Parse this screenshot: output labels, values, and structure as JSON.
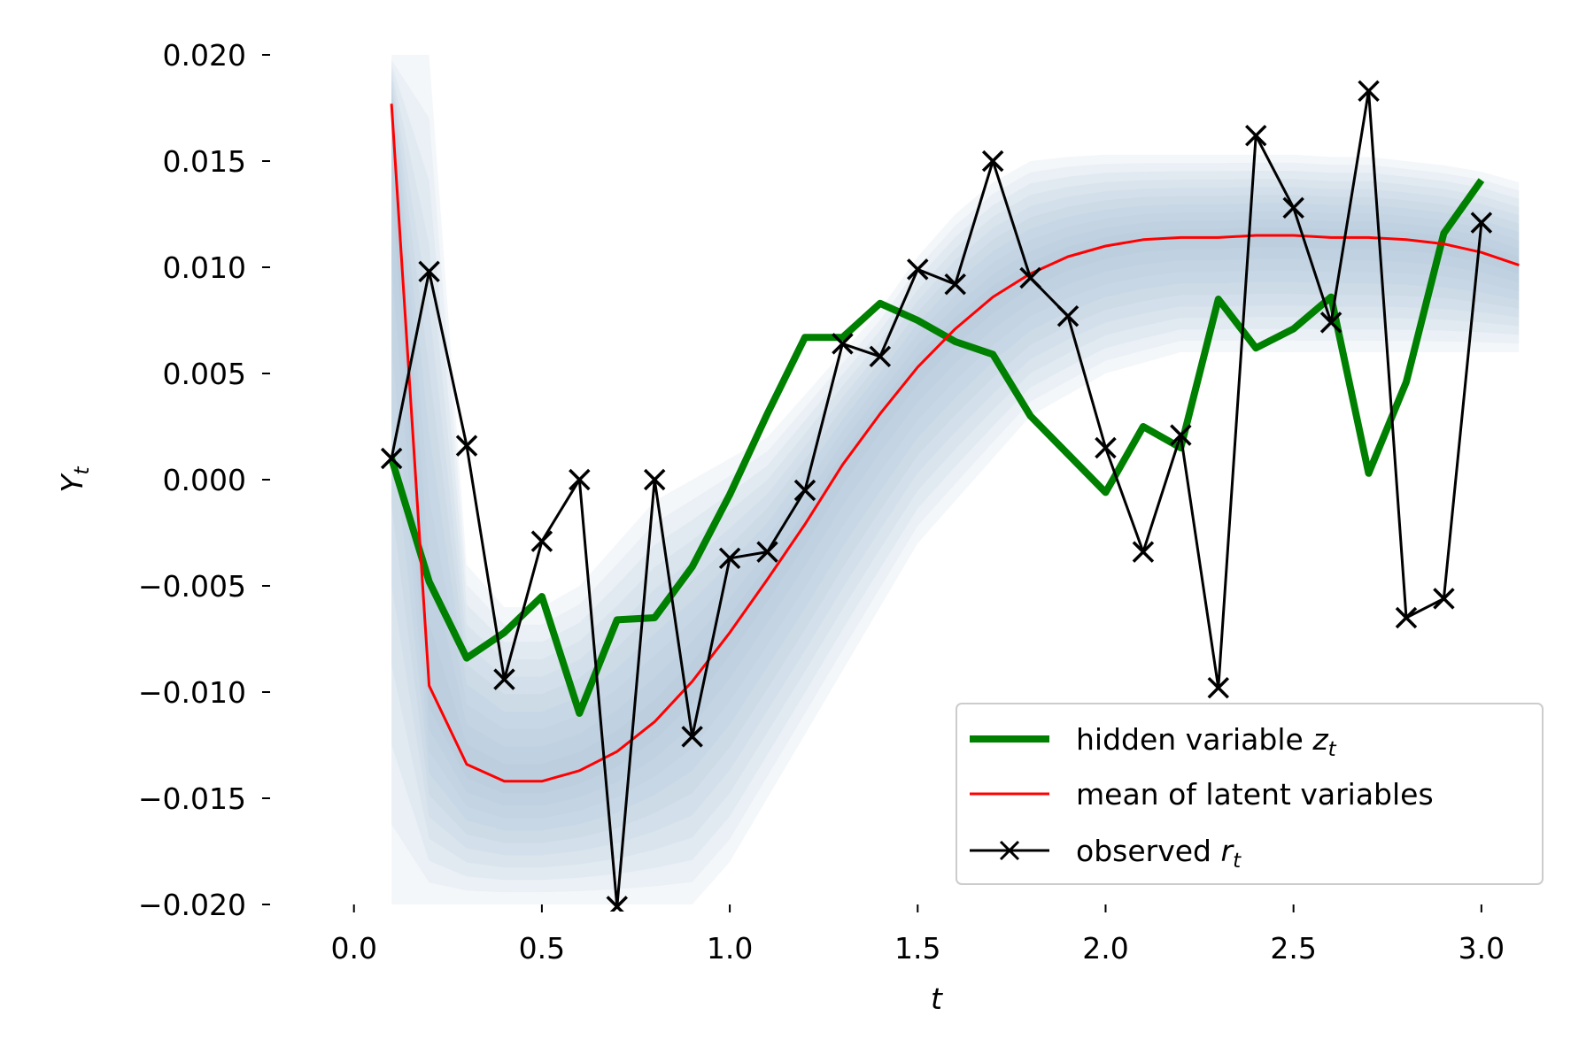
{
  "chart_data": {
    "type": "line",
    "xlabel": "t",
    "ylabel": "Y",
    "ylabel_sub": "t",
    "xlim": [
      -0.07,
      3.17
    ],
    "ylim": [
      -0.02,
      0.02
    ],
    "x_ticks": [
      0.0,
      0.5,
      1.0,
      1.5,
      2.0,
      2.5,
      3.0
    ],
    "x_tick_labels": [
      "0.0",
      "0.5",
      "1.0",
      "1.5",
      "2.0",
      "2.5",
      "3.0"
    ],
    "y_ticks": [
      0.02,
      0.015,
      0.01,
      0.005,
      0.0,
      -0.005,
      -0.01,
      -0.015,
      -0.02
    ],
    "y_tick_labels": [
      "0.020",
      "0.015",
      "0.010",
      "0.005",
      "0.000",
      "−0.005",
      "−0.010",
      "−0.015",
      "−0.020"
    ],
    "grid": false,
    "legend_position": "lower-right",
    "series": [
      {
        "name": "hidden variable",
        "name_sub": "t",
        "name_var": "z",
        "kind": "line",
        "color": "#008000",
        "x": [
          0.1,
          0.2,
          0.3,
          0.4,
          0.5,
          0.6,
          0.7,
          0.8,
          0.9,
          1.0,
          1.1,
          1.2,
          1.3,
          1.4,
          1.5,
          1.6,
          1.7,
          1.8,
          1.9,
          2.0,
          2.1,
          2.2,
          2.3,
          2.4,
          2.5,
          2.6,
          2.7,
          2.8,
          2.9,
          3.0
        ],
        "values": [
          0.001,
          -0.0048,
          -0.0084,
          -0.0072,
          -0.0055,
          -0.011,
          -0.0066,
          -0.0065,
          -0.0041,
          -0.0007,
          0.0031,
          0.0067,
          0.0067,
          0.0083,
          0.0075,
          0.0065,
          0.0059,
          0.003,
          0.0012,
          -0.0006,
          0.0025,
          0.0015,
          0.0085,
          0.0062,
          0.0071,
          0.0086,
          0.0003,
          0.0046,
          0.0116,
          0.0141
        ]
      },
      {
        "name": "mean of latent variables",
        "kind": "line",
        "color": "#ff0000",
        "x": [
          0.1,
          0.2,
          0.3,
          0.4,
          0.5,
          0.6,
          0.7,
          0.8,
          0.9,
          1.0,
          1.1,
          1.2,
          1.3,
          1.4,
          1.5,
          1.6,
          1.7,
          1.8,
          1.9,
          2.0,
          2.1,
          2.2,
          2.3,
          2.4,
          2.5,
          2.6,
          2.7,
          2.8,
          2.9,
          3.0,
          3.1
        ],
        "values": [
          0.0177,
          -0.0097,
          -0.0134,
          -0.0142,
          -0.0142,
          -0.0137,
          -0.0128,
          -0.0114,
          -0.0095,
          -0.0072,
          -0.0047,
          -0.0021,
          0.0007,
          0.0031,
          0.0053,
          0.0071,
          0.0086,
          0.0097,
          0.0105,
          0.011,
          0.0113,
          0.0114,
          0.0114,
          0.0115,
          0.0115,
          0.0114,
          0.0114,
          0.0113,
          0.0111,
          0.0107,
          0.0101
        ]
      },
      {
        "name": "observed",
        "name_sub": "t",
        "name_var": "r",
        "kind": "line-markers",
        "color": "#000000",
        "x": [
          0.1,
          0.2,
          0.3,
          0.4,
          0.5,
          0.6,
          0.7,
          0.8,
          0.9,
          1.0,
          1.1,
          1.2,
          1.3,
          1.4,
          1.5,
          1.6,
          1.7,
          1.8,
          1.9,
          2.0,
          2.1,
          2.2,
          2.3,
          2.4,
          2.5,
          2.6,
          2.7,
          2.8,
          2.9,
          3.0
        ],
        "values": [
          0.001,
          0.0098,
          0.0016,
          -0.0094,
          -0.0029,
          0.0,
          -0.0201,
          0.0,
          -0.0121,
          -0.0037,
          -0.0034,
          -0.0005,
          0.0064,
          0.0058,
          0.0099,
          0.0092,
          0.015,
          0.0095,
          0.0077,
          0.0015,
          -0.0034,
          0.0021,
          -0.0098,
          0.0162,
          0.0128,
          0.0074,
          0.0183,
          -0.0065,
          -0.0056,
          0.0121
        ]
      }
    ],
    "band": {
      "color": "#a7bfdb",
      "x": [
        0.1,
        0.2,
        0.3,
        0.4,
        0.5,
        0.6,
        0.7,
        0.8,
        0.9,
        1.0,
        1.1,
        1.2,
        1.3,
        1.4,
        1.5,
        1.6,
        1.7,
        1.8,
        1.9,
        2.0,
        2.1,
        2.2,
        2.3,
        2.4,
        2.5,
        2.6,
        2.7,
        2.8,
        2.9,
        3.0,
        3.1
      ],
      "upper": [
        0.02,
        0.02,
        -0.004,
        -0.006,
        -0.006,
        -0.005,
        -0.003,
        -0.001,
        0.0,
        0.001,
        0.002,
        0.004,
        0.006,
        0.008,
        0.0105,
        0.0125,
        0.014,
        0.015,
        0.0152,
        0.0153,
        0.0153,
        0.0153,
        0.0153,
        0.0153,
        0.0153,
        0.0152,
        0.0152,
        0.015,
        0.0148,
        0.0145,
        0.014
      ],
      "lower": [
        -0.02,
        -0.02,
        -0.02,
        -0.02,
        -0.02,
        -0.02,
        -0.02,
        -0.02,
        -0.02,
        -0.018,
        -0.015,
        -0.012,
        -0.009,
        -0.006,
        -0.003,
        -0.001,
        0.001,
        0.003,
        0.004,
        0.005,
        0.0055,
        0.006,
        0.006,
        0.006,
        0.006,
        0.006,
        0.006,
        0.006,
        0.006,
        0.006,
        0.006
      ]
    }
  }
}
